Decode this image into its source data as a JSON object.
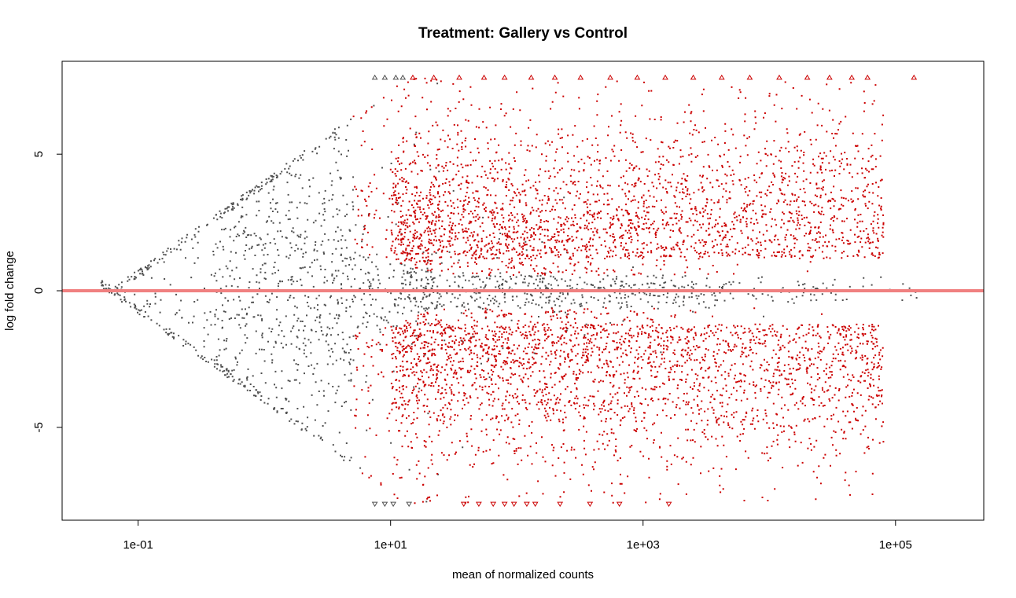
{
  "chart_data": {
    "type": "scatter",
    "title": "Treatment: Gallery vs Control",
    "xlabel": "mean of normalized counts",
    "ylabel": "log fold change",
    "x_scale": "log10",
    "xlim": [
      0.025,
      500000
    ],
    "ylim": [
      -8.4,
      8.4
    ],
    "x_ticks": [
      0.1,
      10,
      1000,
      100000
    ],
    "x_tick_labels": [
      "1e-01",
      "1e+01",
      "1e+03",
      "1e+05"
    ],
    "y_ticks": [
      -5,
      0,
      5
    ],
    "y_tick_labels": [
      "-5",
      "0",
      "5"
    ],
    "reference_line": {
      "y": 0,
      "color": "#f08080"
    },
    "clip_value": 7.8,
    "grid": false,
    "legend": "none",
    "series": [
      {
        "color": "#505050",
        "marker": "dot"
      },
      {
        "color": "#cc0000",
        "marker": "dot"
      },
      {
        "color": "#505050",
        "marker": "triangle-up",
        "points": [
          [
            7.5,
            7.8
          ],
          [
            9,
            7.8
          ],
          [
            11,
            7.8
          ],
          [
            12.5,
            7.8
          ]
        ]
      },
      {
        "color": "#cc0000",
        "marker": "triangle-up",
        "points": [
          [
            15,
            7.8
          ],
          [
            22,
            7.8
          ],
          [
            35,
            7.8
          ],
          [
            55,
            7.8
          ],
          [
            80,
            7.8
          ],
          [
            130,
            7.8
          ],
          [
            200,
            7.8
          ],
          [
            320,
            7.8
          ],
          [
            550,
            7.8
          ],
          [
            900,
            7.8
          ],
          [
            1500,
            7.8
          ],
          [
            2500,
            7.8
          ],
          [
            4200,
            7.8
          ],
          [
            7000,
            7.8
          ],
          [
            12000,
            7.8
          ],
          [
            20000,
            7.8
          ],
          [
            30000,
            7.8
          ],
          [
            45000,
            7.8
          ],
          [
            60000,
            7.8
          ],
          [
            140000,
            7.8
          ]
        ]
      },
      {
        "color": "#505050",
        "marker": "triangle-down",
        "points": [
          [
            7.5,
            -7.8
          ],
          [
            9,
            -7.8
          ],
          [
            10.5,
            -7.8
          ],
          [
            14,
            -7.8
          ]
        ]
      },
      {
        "color": "#cc0000",
        "marker": "triangle-down",
        "points": [
          [
            38,
            -7.8
          ],
          [
            50,
            -7.8
          ],
          [
            65,
            -7.8
          ],
          [
            80,
            -7.8
          ],
          [
            95,
            -7.8
          ],
          [
            120,
            -7.8
          ],
          [
            140,
            -7.8
          ],
          [
            220,
            -7.8
          ],
          [
            380,
            -7.8
          ],
          [
            650,
            -7.8
          ],
          [
            1600,
            -7.8
          ]
        ]
      }
    ]
  }
}
